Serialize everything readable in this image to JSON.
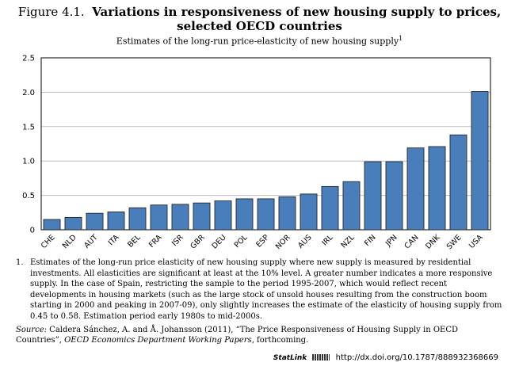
{
  "figure": {
    "number": "Figure 4.1.",
    "title_line1": "Variations in responsiveness of new housing supply to prices,",
    "title_line2": "selected OECD countries",
    "subtitle": "Estimates of the long-run price-elasticity of new housing supply",
    "subtitle_sup": "1"
  },
  "chart_data": {
    "type": "bar",
    "categories": [
      "CHE",
      "NLD",
      "AUT",
      "ITA",
      "BEL",
      "FRA",
      "ISR",
      "GBR",
      "DEU",
      "POL",
      "ESP",
      "NOR",
      "AUS",
      "IRL",
      "NZL",
      "FIN",
      "JPN",
      "CAN",
      "DNK",
      "SWE",
      "USA"
    ],
    "values": [
      0.15,
      0.18,
      0.24,
      0.26,
      0.32,
      0.36,
      0.37,
      0.39,
      0.42,
      0.45,
      0.45,
      0.48,
      0.52,
      0.63,
      0.7,
      0.99,
      0.99,
      1.19,
      1.21,
      1.38,
      2.01
    ],
    "ylim": [
      0,
      2.5
    ],
    "yticks": [
      "0",
      "0.5",
      "1.0",
      "1.5",
      "2.0",
      "2.5"
    ],
    "grid": true,
    "colors": {
      "bar": "#4a7ebb",
      "bar_edge": "#1a1a1a",
      "grid": "#bdbdbd"
    }
  },
  "notes": {
    "num": "1.",
    "text": "Estimates of the long-run price elasticity of new housing supply where new supply is measured by residential investments. All elasticities are significant at least at the 10% level. A greater number indicates a more responsive supply. In the case of Spain, restricting the sample to the period 1995-2007, which would reflect recent developments in housing markets (such as the large stock of unsold houses resulting from the construction boom starting in 2000 and peaking in 2007-09), only slightly increases the estimate of the elasticity of housing supply from 0.45 to 0.58. Estimation period early 1980s to mid-2000s."
  },
  "source": {
    "label": "Source:",
    "text_before": "Caldera Sánchez, A. and Å. Johansson (2011), “The Price Responsiveness of Housing Supply in OECD Countries”,",
    "publication": "OECD Economics Department Working Papers",
    "text_after": ", forthcoming."
  },
  "statlink": {
    "label": "StatLink",
    "url": "http://dx.doi.org/10.1787/888932368669"
  }
}
